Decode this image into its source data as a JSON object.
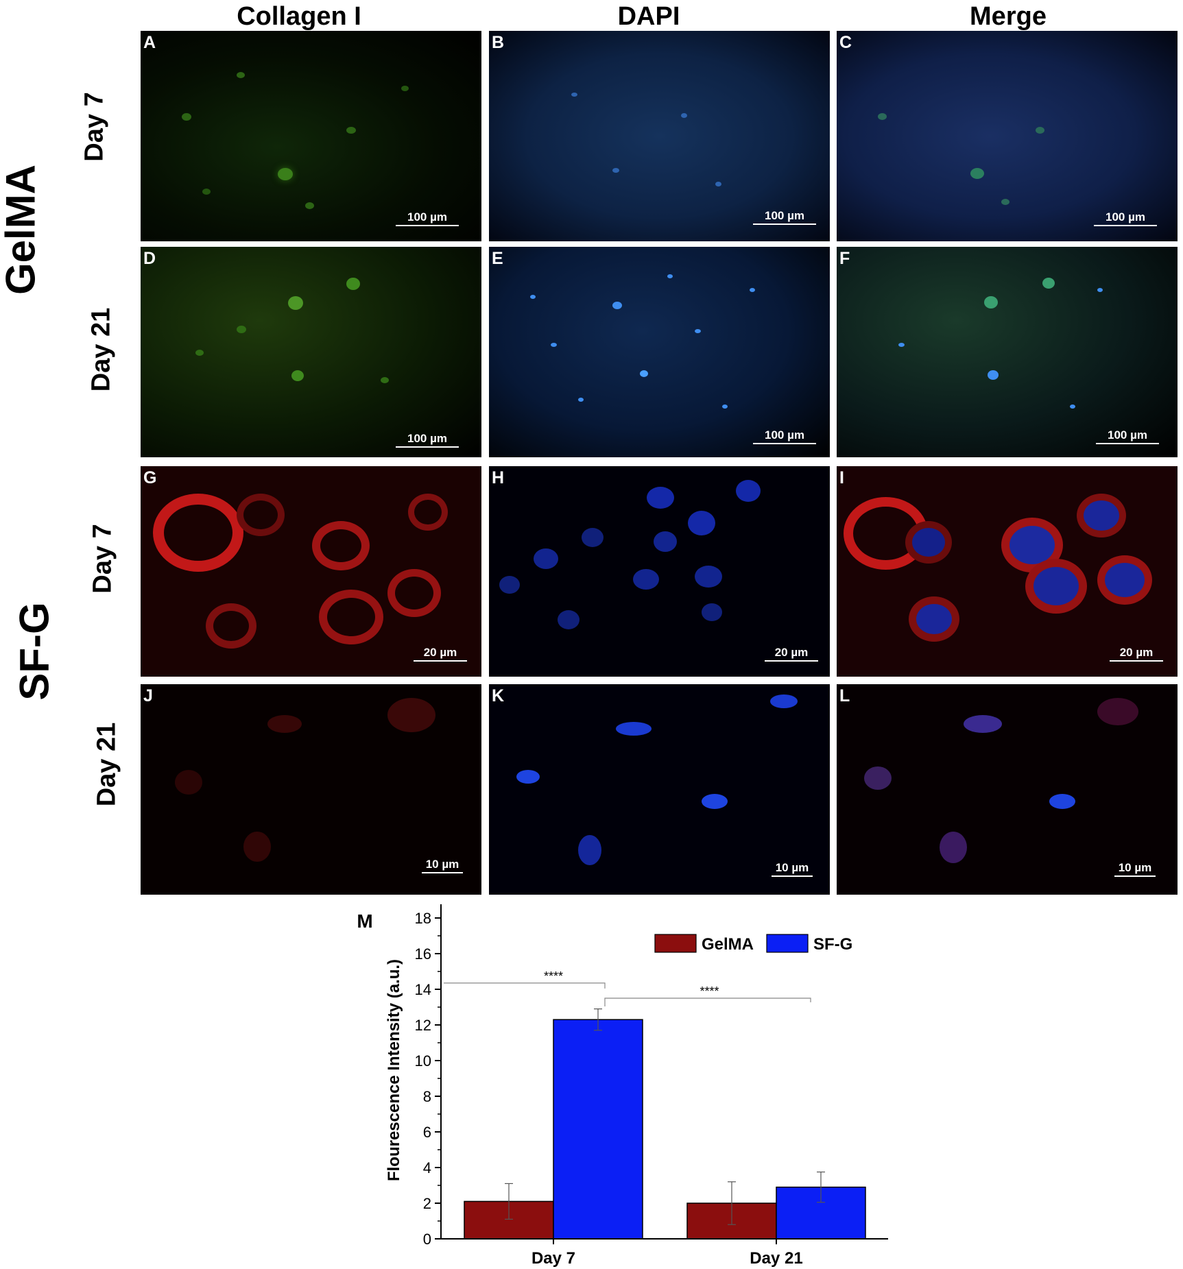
{
  "columns": [
    "Collagen I",
    "DAPI",
    "Merge"
  ],
  "groups": [
    "GelMA",
    "SF-G"
  ],
  "rows": [
    {
      "group": "GelMA",
      "day": "Day 7",
      "letters": [
        "A",
        "B",
        "C"
      ],
      "scales": [
        "100 µm",
        "100 µm",
        "100 µm"
      ]
    },
    {
      "group": "GelMA",
      "day": "Day 21",
      "letters": [
        "D",
        "E",
        "F"
      ],
      "scales": [
        "100 µm",
        "100 µm",
        "100 µm"
      ]
    },
    {
      "group": "SF-G",
      "day": "Day 7",
      "letters": [
        "G",
        "H",
        "I"
      ],
      "scales": [
        "20 µm",
        "20 µm",
        "20 µm"
      ]
    },
    {
      "group": "SF-G",
      "day": "Day 21",
      "letters": [
        "J",
        "K",
        "L"
      ],
      "scales": [
        "10 µm",
        "10 µm",
        "10 µm"
      ]
    }
  ],
  "colors": {
    "collagen_green": "#3f8f1f",
    "collagen_red": "#d81e1e",
    "dapi_blue": "#1e4fe6",
    "gelma_bar": "#8b0e0e",
    "sfg_bar": "#0b1ff5"
  },
  "chart_data": {
    "panel_letter": "M",
    "type": "bar",
    "categories": [
      "Day 7",
      "Day 21"
    ],
    "series": [
      {
        "name": "GelMA",
        "values": [
          2.1,
          2.0
        ],
        "errors": [
          1.0,
          1.2
        ],
        "color": "#8b0e0e"
      },
      {
        "name": "SF-G",
        "values": [
          12.3,
          2.9
        ],
        "errors": [
          0.6,
          0.85
        ],
        "color": "#0b1ff5"
      }
    ],
    "ylabel": "Flourescence Intensity (a.u.)",
    "xlabel": "",
    "ylim": [
      0,
      18
    ],
    "yticks": [
      0,
      2,
      4,
      6,
      8,
      10,
      12,
      14,
      16,
      18
    ],
    "legend_position": "top-right",
    "significance": [
      "****",
      "****"
    ],
    "grid": false
  }
}
